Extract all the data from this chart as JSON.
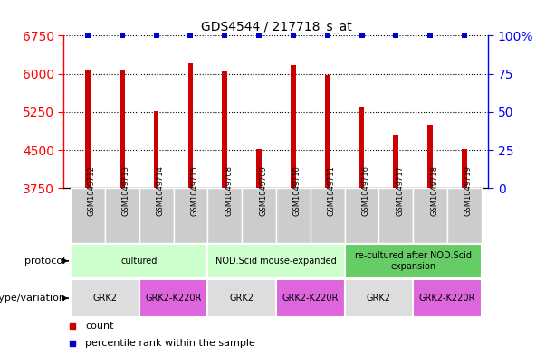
{
  "title": "GDS4544 / 217718_s_at",
  "samples": [
    "GSM1049712",
    "GSM1049713",
    "GSM1049714",
    "GSM1049715",
    "GSM1049708",
    "GSM1049709",
    "GSM1049710",
    "GSM1049711",
    "GSM1049716",
    "GSM1049717",
    "GSM1049718",
    "GSM1049719"
  ],
  "counts": [
    6080,
    6060,
    5260,
    6200,
    6040,
    4520,
    6170,
    5970,
    5340,
    4790,
    4990,
    4520
  ],
  "ylim_left": [
    3750,
    6750
  ],
  "yticks_left": [
    3750,
    4500,
    5250,
    6000,
    6750
  ],
  "yticks_right": [
    0,
    25,
    50,
    75,
    100
  ],
  "bar_color": "#cc0000",
  "dot_color": "#0000cc",
  "protocol_groups": [
    {
      "label": "cultured",
      "start": 0,
      "end": 3,
      "color": "#ccffcc"
    },
    {
      "label": "NOD.Scid mouse-expanded",
      "start": 4,
      "end": 7,
      "color": "#ccffcc"
    },
    {
      "label": "re-cultured after NOD.Scid\nexpansion",
      "start": 8,
      "end": 11,
      "color": "#66cc66"
    }
  ],
  "genotype_groups": [
    {
      "label": "GRK2",
      "start": 0,
      "end": 1,
      "color": "#dddddd"
    },
    {
      "label": "GRK2-K220R",
      "start": 2,
      "end": 3,
      "color": "#dd66dd"
    },
    {
      "label": "GRK2",
      "start": 4,
      "end": 5,
      "color": "#dddddd"
    },
    {
      "label": "GRK2-K220R",
      "start": 6,
      "end": 7,
      "color": "#dd66dd"
    },
    {
      "label": "GRK2",
      "start": 8,
      "end": 9,
      "color": "#dddddd"
    },
    {
      "label": "GRK2-K220R",
      "start": 10,
      "end": 11,
      "color": "#dd66dd"
    }
  ],
  "sample_bg_color": "#cccccc",
  "legend_count_color": "#cc0000",
  "legend_rank_color": "#0000cc"
}
